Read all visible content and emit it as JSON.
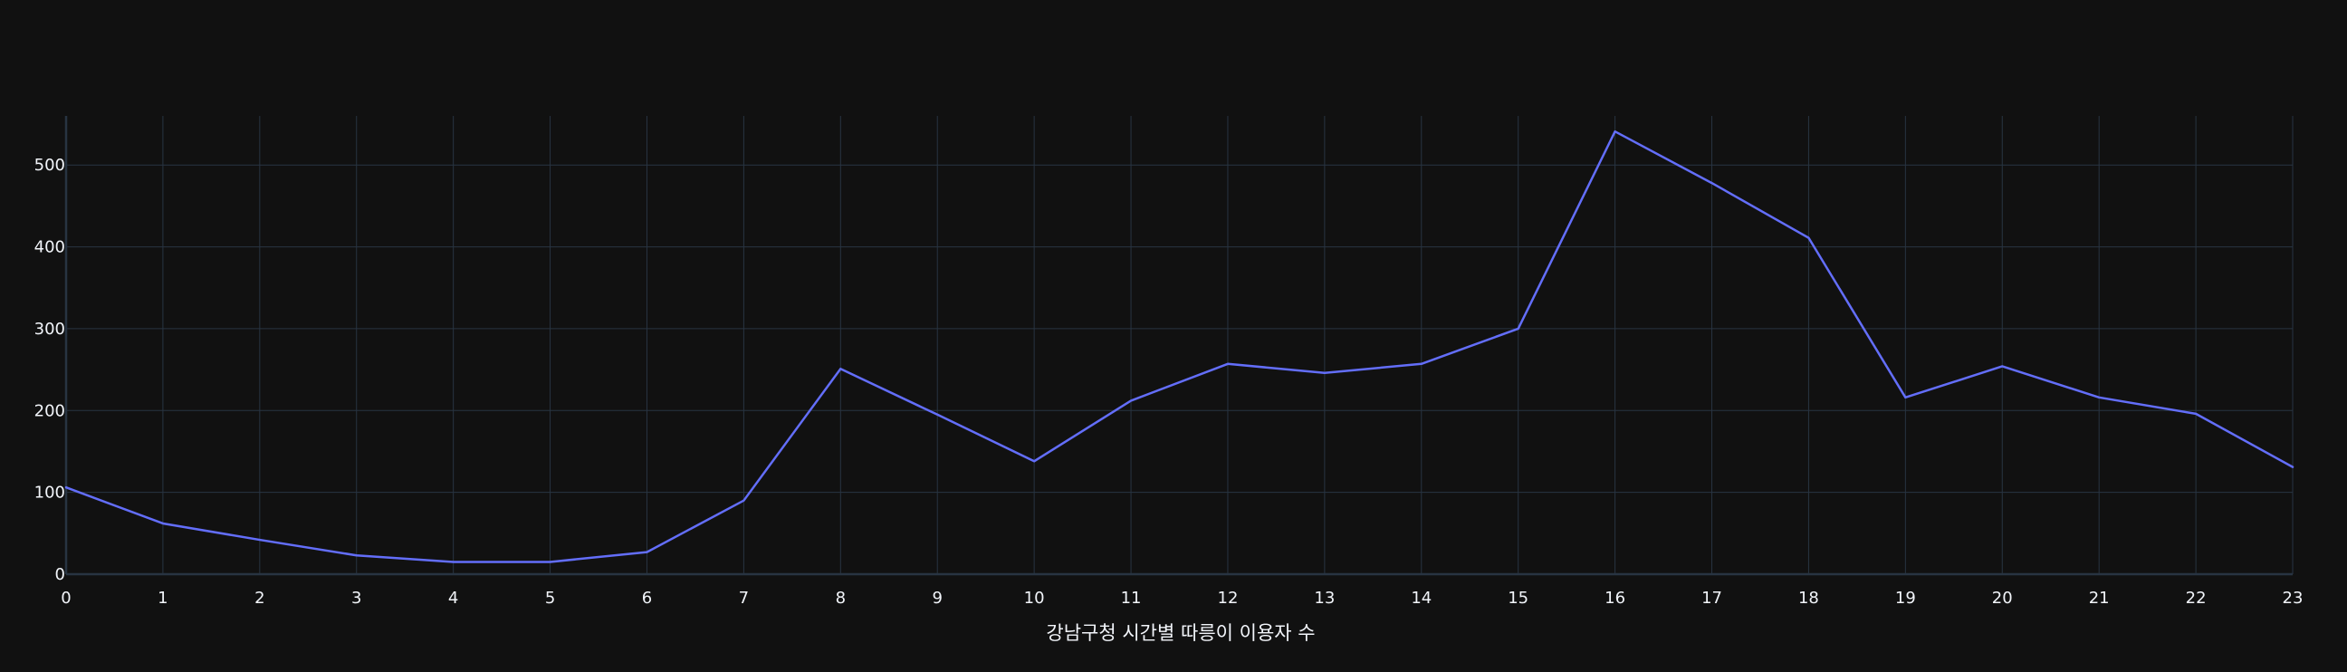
{
  "chart_data": {
    "type": "line",
    "title": "",
    "xlabel": "강남구청 시간별 따릉이 이용자 수",
    "ylabel": "",
    "x": [
      0,
      1,
      2,
      3,
      4,
      5,
      6,
      7,
      8,
      9,
      10,
      11,
      12,
      13,
      14,
      15,
      16,
      17,
      18,
      19,
      20,
      21,
      22,
      23
    ],
    "series": [
      {
        "values": [
          106,
          62,
          42,
          23,
          15,
          15,
          27,
          90,
          251,
          195,
          138,
          212,
          257,
          246,
          257,
          300,
          541,
          478,
          411,
          216,
          254,
          216,
          196,
          131
        ]
      }
    ],
    "xlim": [
      0,
      23
    ],
    "ylim": [
      0,
      560
    ],
    "xticks": [
      "0",
      "1",
      "2",
      "3",
      "4",
      "5",
      "6",
      "7",
      "8",
      "9",
      "10",
      "11",
      "12",
      "13",
      "14",
      "15",
      "16",
      "17",
      "18",
      "19",
      "20",
      "21",
      "22",
      "23"
    ],
    "yticks": [
      "0",
      "100",
      "200",
      "300",
      "400",
      "500"
    ],
    "grid": true,
    "colors": {
      "background": "#111111",
      "grid": "#283442",
      "line": "#636efa",
      "text": "#f2f5fa"
    }
  }
}
